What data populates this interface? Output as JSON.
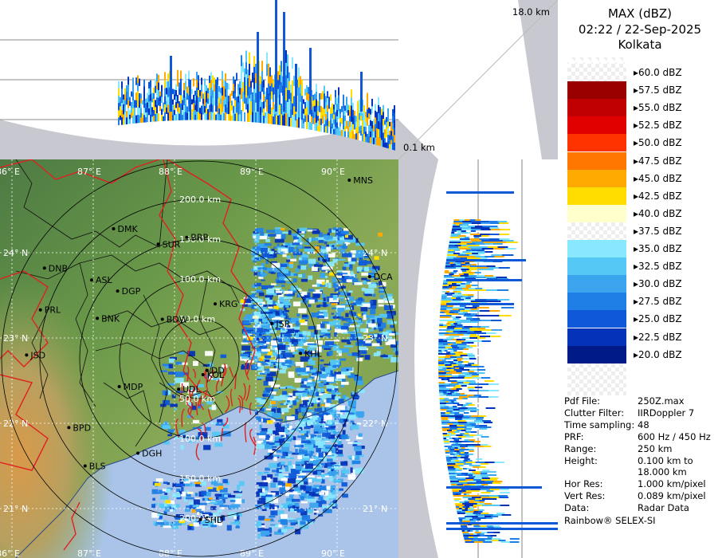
{
  "header": {
    "title": "MAX (dBZ)",
    "datetime": "02:22 / 22-Sep-2025",
    "station": "Kolkata"
  },
  "profile_labels": {
    "top_height": "18.0 km",
    "bottom_height": "0.1 km"
  },
  "legend": {
    "levels": [
      {
        "label": "60.0 dBZ",
        "color": "#ffffff"
      },
      {
        "label": "57.5 dBZ",
        "color": "#990000"
      },
      {
        "label": "55.0 dBZ",
        "color": "#c00000"
      },
      {
        "label": "52.5 dBZ",
        "color": "#e00000"
      },
      {
        "label": "50.0 dBZ",
        "color": "#ff3300"
      },
      {
        "label": "47.5 dBZ",
        "color": "#ff7700"
      },
      {
        "label": "45.0 dBZ",
        "color": "#ffaa00"
      },
      {
        "label": "42.5 dBZ",
        "color": "#ffdd00"
      },
      {
        "label": "40.0 dBZ",
        "color": "#ffffcc"
      },
      {
        "label": "37.5 dBZ",
        "color": "#ffffff"
      },
      {
        "label": "35.0 dBZ",
        "color": "#88e8ff"
      },
      {
        "label": "32.5 dBZ",
        "color": "#55c8f5"
      },
      {
        "label": "30.0 dBZ",
        "color": "#3aa4ee"
      },
      {
        "label": "27.5 dBZ",
        "color": "#1f7fe6"
      },
      {
        "label": "25.0 dBZ",
        "color": "#0f58d8"
      },
      {
        "label": "22.5 dBZ",
        "color": "#0432b8"
      },
      {
        "label": "20.0 dBZ",
        "color": "#001a88"
      }
    ]
  },
  "info": [
    {
      "key": "Pdf File:",
      "value": "250Z.max"
    },
    {
      "key": "Clutter Filter:",
      "value": "IIRDoppler 7"
    },
    {
      "key": "Time sampling:",
      "value": "48"
    },
    {
      "key": "PRF:",
      "value": "600 Hz / 450 Hz"
    },
    {
      "key": "Range:",
      "value": "250 km"
    },
    {
      "key": "Height:",
      "value": "0.100 km to"
    },
    {
      "key": "",
      "value": "18.000 km"
    },
    {
      "key": "Hor Res:",
      "value": "1.000 km/pixel"
    },
    {
      "key": "Vert Res:",
      "value": "0.089 km/pixel"
    },
    {
      "key": "Data:",
      "value": "Radar Data"
    }
  ],
  "footer": "Rainbow® SELEX-SI",
  "map": {
    "lon_labels": [
      "86° E",
      "87° E",
      "88° E",
      "89° E",
      "90° E"
    ],
    "lat_labels": [
      "24° N",
      "23° N",
      "22° N",
      "21° N"
    ],
    "range_labels": [
      "50.0 km",
      "100.0 km",
      "150.0 km",
      "200.0 km"
    ],
    "cities": [
      {
        "name": "MNS",
        "lon": 90.15,
        "lat": 24.85
      },
      {
        "name": "DMK",
        "lon": 87.25,
        "lat": 24.28
      },
      {
        "name": "BRP",
        "lon": 88.15,
        "lat": 24.18
      },
      {
        "name": "SUR",
        "lon": 87.8,
        "lat": 24.1
      },
      {
        "name": "DNB",
        "lon": 86.4,
        "lat": 23.82
      },
      {
        "name": "ASL",
        "lon": 86.98,
        "lat": 23.68
      },
      {
        "name": "DGP",
        "lon": 87.3,
        "lat": 23.55
      },
      {
        "name": "DCA",
        "lon": 90.4,
        "lat": 23.72
      },
      {
        "name": "KRG",
        "lon": 88.5,
        "lat": 23.4
      },
      {
        "name": "PRL",
        "lon": 86.35,
        "lat": 23.33
      },
      {
        "name": "BNK",
        "lon": 87.05,
        "lat": 23.23
      },
      {
        "name": "BDW",
        "lon": 87.85,
        "lat": 23.22
      },
      {
        "name": "JSR",
        "lon": 89.2,
        "lat": 23.17
      },
      {
        "name": "KHL",
        "lon": 89.55,
        "lat": 22.82
      },
      {
        "name": "JSD",
        "lon": 86.18,
        "lat": 22.8
      },
      {
        "name": "DD",
        "lon": 88.4,
        "lat": 22.62
      },
      {
        "name": "UDL",
        "lon": 88.05,
        "lat": 22.4
      },
      {
        "name": "MDP",
        "lon": 87.32,
        "lat": 22.43
      },
      {
        "name": "KOL",
        "lon": 88.35,
        "lat": 22.57
      },
      {
        "name": "BPD",
        "lon": 86.7,
        "lat": 21.95
      },
      {
        "name": "DGH",
        "lon": 87.55,
        "lat": 21.65
      },
      {
        "name": "BLS",
        "lon": 86.9,
        "lat": 21.5
      },
      {
        "name": "SHD",
        "lon": 88.32,
        "lat": 20.87
      }
    ]
  }
}
